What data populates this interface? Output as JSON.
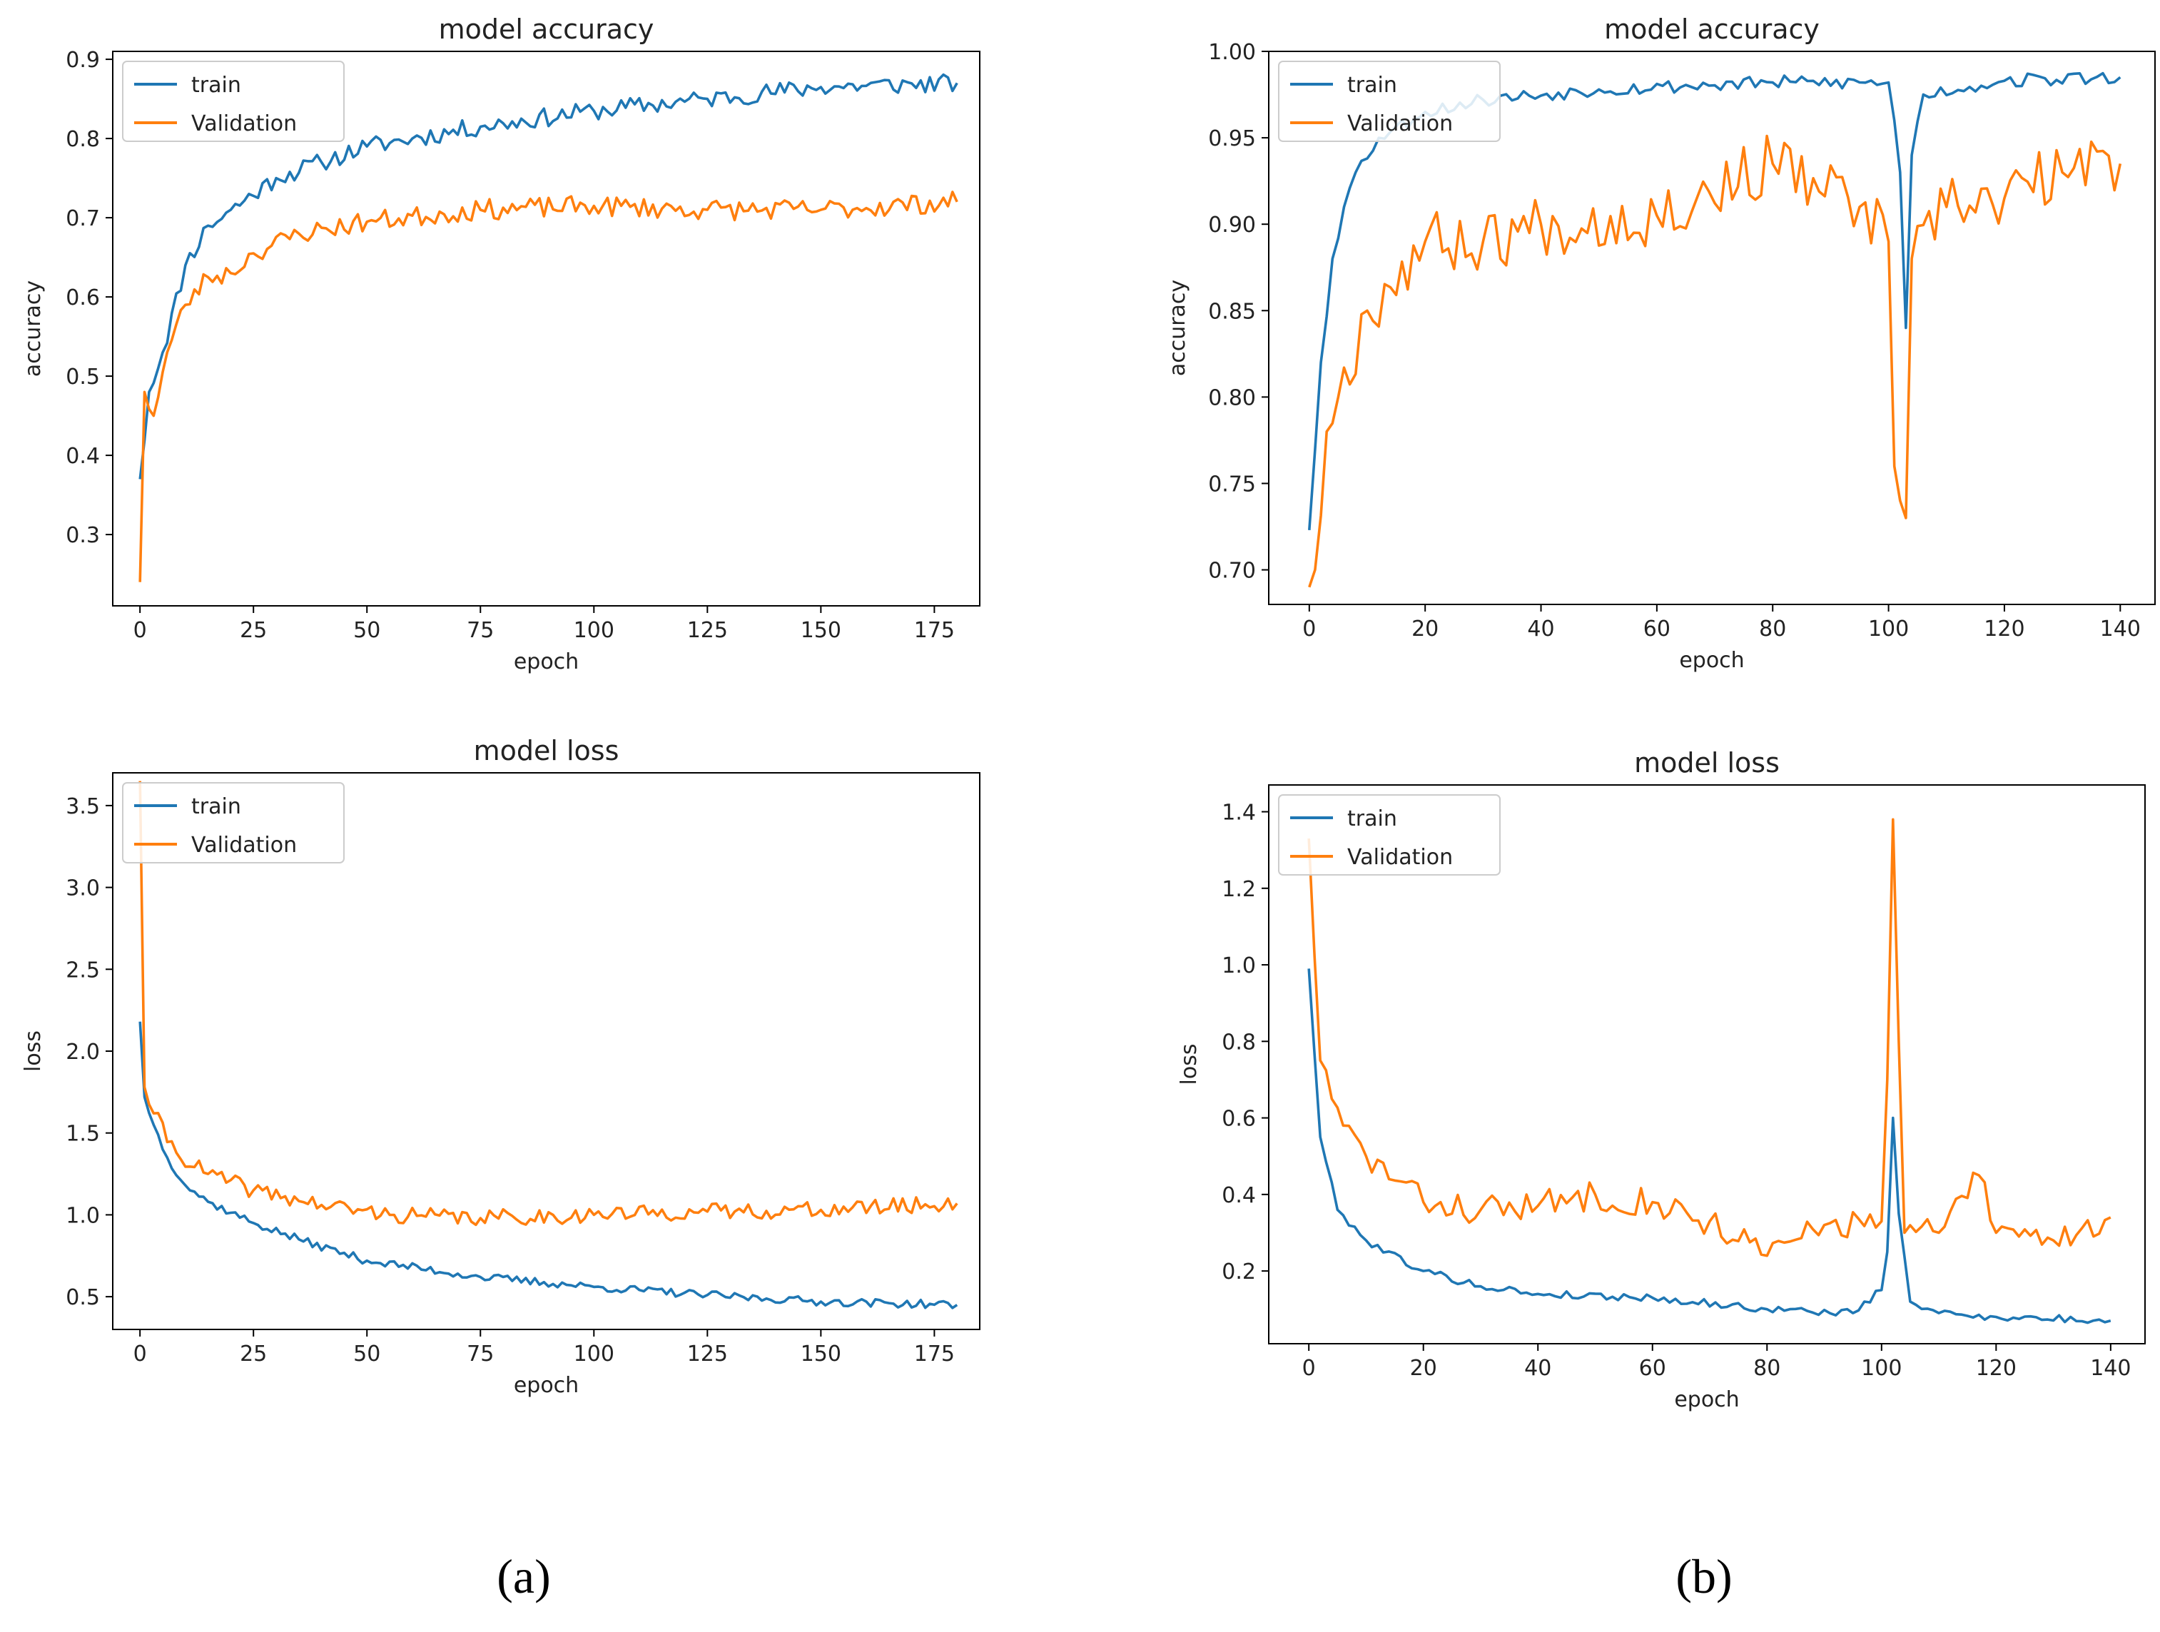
{
  "colors": {
    "train": "#1f77b4",
    "validation": "#ff7f0e",
    "axis": "#000000",
    "text": "#222222"
  },
  "captions": {
    "a": "(a)",
    "b": "(b)"
  },
  "chart_data": [
    {
      "id": "a_acc",
      "type": "line",
      "title": "model accuracy",
      "xlabel": "epoch",
      "ylabel": "accuracy",
      "xlim": [
        -6,
        185
      ],
      "ylim": [
        0.21,
        0.91
      ],
      "xticks": [
        0,
        25,
        50,
        75,
        100,
        125,
        150,
        175
      ],
      "yticks": [
        0.3,
        0.4,
        0.5,
        0.6,
        0.7,
        0.8,
        0.9
      ],
      "ytick_decimals": 1,
      "legend": "upper-left",
      "series": [
        {
          "name": "train",
          "color": "train",
          "n": 181,
          "noise": 0.012,
          "seed": 11,
          "points": [
            [
              0,
              0.37
            ],
            [
              2,
              0.48
            ],
            [
              5,
              0.53
            ],
            [
              10,
              0.64
            ],
            [
              15,
              0.69
            ],
            [
              20,
              0.71
            ],
            [
              30,
              0.75
            ],
            [
              40,
              0.77
            ],
            [
              50,
              0.79
            ],
            [
              60,
              0.8
            ],
            [
              75,
              0.815
            ],
            [
              100,
              0.835
            ],
            [
              125,
              0.85
            ],
            [
              150,
              0.865
            ],
            [
              180,
              0.87
            ]
          ]
        },
        {
          "name": "Validation",
          "color": "validation",
          "n": 181,
          "noise": 0.013,
          "seed": 23,
          "points": [
            [
              0,
              0.24
            ],
            [
              1,
              0.48
            ],
            [
              3,
              0.45
            ],
            [
              6,
              0.53
            ],
            [
              10,
              0.59
            ],
            [
              15,
              0.625
            ],
            [
              20,
              0.63
            ],
            [
              25,
              0.655
            ],
            [
              35,
              0.68
            ],
            [
              50,
              0.695
            ],
            [
              75,
              0.71
            ],
            [
              100,
              0.715
            ],
            [
              125,
              0.71
            ],
            [
              150,
              0.71
            ],
            [
              180,
              0.72
            ]
          ]
        }
      ]
    },
    {
      "id": "a_loss",
      "type": "line",
      "title": "model loss",
      "xlabel": "epoch",
      "ylabel": "loss",
      "xlim": [
        -6,
        185
      ],
      "ylim": [
        0.3,
        3.7
      ],
      "xticks": [
        0,
        25,
        50,
        75,
        100,
        125,
        150,
        175
      ],
      "yticks": [
        0.5,
        1.0,
        1.5,
        2.0,
        2.5,
        3.0,
        3.5
      ],
      "ytick_decimals": 1,
      "legend": "upper-left",
      "series": [
        {
          "name": "train",
          "color": "train",
          "n": 181,
          "noise": 0.025,
          "seed": 37,
          "points": [
            [
              0,
              2.18
            ],
            [
              1,
              1.72
            ],
            [
              3,
              1.55
            ],
            [
              6,
              1.35
            ],
            [
              10,
              1.18
            ],
            [
              15,
              1.08
            ],
            [
              25,
              0.95
            ],
            [
              35,
              0.85
            ],
            [
              50,
              0.72
            ],
            [
              75,
              0.62
            ],
            [
              100,
              0.56
            ],
            [
              125,
              0.51
            ],
            [
              150,
              0.47
            ],
            [
              180,
              0.45
            ]
          ]
        },
        {
          "name": "Validation",
          "color": "validation",
          "n": 181,
          "noise": 0.05,
          "seed": 41,
          "points": [
            [
              0,
              3.65
            ],
            [
              1,
              1.78
            ],
            [
              3,
              1.62
            ],
            [
              8,
              1.38
            ],
            [
              15,
              1.25
            ],
            [
              25,
              1.15
            ],
            [
              40,
              1.06
            ],
            [
              55,
              1.0
            ],
            [
              75,
              0.98
            ],
            [
              100,
              1.0
            ],
            [
              125,
              1.02
            ],
            [
              150,
              1.03
            ],
            [
              180,
              1.07
            ]
          ]
        }
      ]
    },
    {
      "id": "b_acc",
      "type": "line",
      "title": "model accuracy",
      "xlabel": "epoch",
      "ylabel": "accuracy",
      "xlim": [
        -7,
        146
      ],
      "ylim": [
        0.68,
        1.0
      ],
      "xticks": [
        0,
        20,
        40,
        60,
        80,
        100,
        120,
        140
      ],
      "yticks": [
        0.7,
        0.75,
        0.8,
        0.85,
        0.9,
        0.95,
        1.0
      ],
      "ytick_decimals": 2,
      "legend": "upper-left",
      "series": [
        {
          "name": "train",
          "color": "train",
          "n": 141,
          "noise": 0.004,
          "seed": 53,
          "points": [
            [
              0,
              0.723
            ],
            [
              2,
              0.82
            ],
            [
              4,
              0.88
            ],
            [
              6,
              0.91
            ],
            [
              8,
              0.93
            ],
            [
              12,
              0.95
            ],
            [
              20,
              0.965
            ],
            [
              30,
              0.972
            ],
            [
              50,
              0.978
            ],
            [
              80,
              0.982
            ],
            [
              100,
              0.982
            ],
            [
              101,
              0.96
            ],
            [
              102,
              0.93
            ],
            [
              103,
              0.84
            ],
            [
              104,
              0.94
            ],
            [
              106,
              0.975
            ],
            [
              120,
              0.983
            ],
            [
              140,
              0.985
            ]
          ]
        },
        {
          "name": "Validation",
          "color": "validation",
          "n": 141,
          "noise": 0.018,
          "seed": 67,
          "points": [
            [
              0,
              0.69
            ],
            [
              1,
              0.7
            ],
            [
              3,
              0.78
            ],
            [
              5,
              0.8
            ],
            [
              10,
              0.85
            ],
            [
              20,
              0.89
            ],
            [
              30,
              0.89
            ],
            [
              40,
              0.9
            ],
            [
              60,
              0.905
            ],
            [
              80,
              0.935
            ],
            [
              95,
              0.91
            ],
            [
              100,
              0.89
            ],
            [
              101,
              0.76
            ],
            [
              102,
              0.74
            ],
            [
              103,
              0.73
            ],
            [
              104,
              0.88
            ],
            [
              110,
              0.91
            ],
            [
              120,
              0.915
            ],
            [
              130,
              0.93
            ],
            [
              140,
              0.935
            ]
          ]
        }
      ]
    },
    {
      "id": "b_loss",
      "type": "line",
      "title": "model loss",
      "xlabel": "epoch",
      "ylabel": "loss",
      "xlim": [
        -7,
        146
      ],
      "ylim": [
        0.01,
        1.47
      ],
      "xticks": [
        0,
        20,
        40,
        60,
        80,
        100,
        120,
        140
      ],
      "yticks": [
        0.2,
        0.4,
        0.6,
        0.8,
        1.0,
        1.2,
        1.4
      ],
      "ytick_decimals": 1,
      "legend": "upper-left",
      "series": [
        {
          "name": "train",
          "color": "train",
          "n": 141,
          "noise": 0.01,
          "seed": 79,
          "points": [
            [
              0,
              0.99
            ],
            [
              2,
              0.55
            ],
            [
              5,
              0.36
            ],
            [
              10,
              0.28
            ],
            [
              20,
              0.2
            ],
            [
              30,
              0.16
            ],
            [
              40,
              0.14
            ],
            [
              60,
              0.13
            ],
            [
              80,
              0.1
            ],
            [
              95,
              0.09
            ],
            [
              100,
              0.15
            ],
            [
              101,
              0.25
            ],
            [
              102,
              0.6
            ],
            [
              103,
              0.35
            ],
            [
              105,
              0.12
            ],
            [
              110,
              0.09
            ],
            [
              120,
              0.08
            ],
            [
              140,
              0.07
            ]
          ]
        },
        {
          "name": "Validation",
          "color": "validation",
          "n": 141,
          "noise": 0.04,
          "seed": 83,
          "points": [
            [
              0,
              1.33
            ],
            [
              2,
              0.75
            ],
            [
              4,
              0.65
            ],
            [
              6,
              0.58
            ],
            [
              10,
              0.5
            ],
            [
              20,
              0.38
            ],
            [
              30,
              0.36
            ],
            [
              40,
              0.37
            ],
            [
              50,
              0.4
            ],
            [
              60,
              0.38
            ],
            [
              70,
              0.33
            ],
            [
              80,
              0.24
            ],
            [
              90,
              0.32
            ],
            [
              100,
              0.33
            ],
            [
              101,
              0.7
            ],
            [
              102,
              1.38
            ],
            [
              103,
              0.8
            ],
            [
              104,
              0.3
            ],
            [
              110,
              0.3
            ],
            [
              117,
              0.45
            ],
            [
              120,
              0.3
            ],
            [
              130,
              0.28
            ],
            [
              140,
              0.34
            ]
          ]
        }
      ]
    }
  ]
}
